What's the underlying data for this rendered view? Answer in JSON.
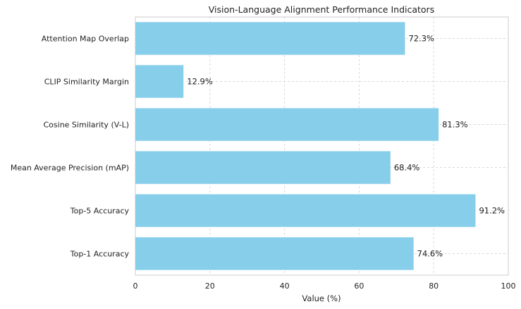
{
  "chart_data": {
    "type": "bar",
    "orientation": "horizontal",
    "title": "Vision-Language Alignment Performance Indicators",
    "xlabel": "Value (%)",
    "ylabel": "",
    "xlim": [
      0,
      100
    ],
    "xticks": [
      "0",
      "20",
      "40",
      "60",
      "80",
      "100"
    ],
    "grid": true,
    "categories": [
      "Attention Map Overlap",
      "CLIP Similarity Margin",
      "Cosine Similarity (V-L)",
      "Mean Average Precision (mAP)",
      "Top-5 Accuracy",
      "Top-1 Accuracy"
    ],
    "values": [
      72.3,
      12.9,
      81.3,
      68.4,
      91.2,
      74.6
    ],
    "value_labels": [
      "72.3%",
      "12.9%",
      "81.3%",
      "68.4%",
      "91.2%",
      "74.6%"
    ],
    "bar_color": "#87ceeb",
    "grid_color": "#d8d8d8"
  }
}
